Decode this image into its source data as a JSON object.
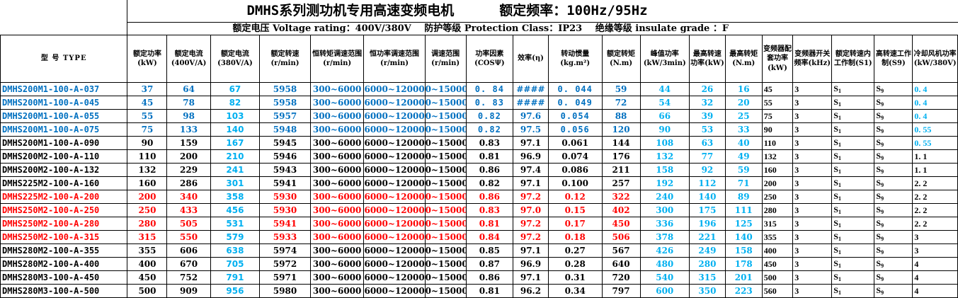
{
  "title": {
    "main": "DMHS系列测功机专用高速变频电机",
    "freq_label": "额定频率：100Hz/95Hz"
  },
  "subtitle": {
    "voltage": "额定电压 Voltage rating：400V/380V",
    "protection": "防护等级 Protection Class：IP23",
    "insulation": "绝缘等级 insulate grade ：F"
  },
  "headers": [
    "型 号 TYPE",
    "额定功率(kW)",
    "额定电流(400V/A)",
    "额定电流(380V/A)",
    "额定转速(r/min)",
    "恒转矩调速范围(r/min)",
    "恒功率调速范围(r/min)",
    "调速范围(r/min)",
    "功率因素(COSΨ)",
    "效率(η)",
    "转动惯量(kg.m²)",
    "额定转矩(N.m)",
    "峰值功率(kW/3min)",
    "最高转速功率(kW)",
    "最高转矩(N.m)",
    "变频器配套功率(kW)",
    "变频器开关频率(kHz)",
    "额定转速内工作制(S1)",
    "高转速工作制(S9)",
    "冷却风机功率(kW/380V)"
  ],
  "rows": [
    {
      "type": "DMHS200M1-100-A-037",
      "color": "blue",
      "p": "37",
      "i400": "64",
      "i380": "67",
      "n": "5958",
      "ct": "300~6000",
      "cp": "6000~12000",
      "sr": "0~15000",
      "pf": "0. 84",
      "eff": "####",
      "j": "0. 044",
      "t": "59",
      "pk": "44",
      "pmax": "26",
      "tmax": "16",
      "inv": "45",
      "sw": "3",
      "s1": "S1",
      "s9": "S9",
      "fan": "0. 4"
    },
    {
      "type": "DMHS200M1-100-A-045",
      "color": "blue",
      "p": "45",
      "i400": "78",
      "i380": "82",
      "n": "5958",
      "ct": "300~6000",
      "cp": "6000~12000",
      "sr": "0~15000",
      "pf": "0. 83",
      "eff": "####",
      "j": "0. 049",
      "t": "72",
      "pk": "54",
      "pmax": "32",
      "tmax": "20",
      "inv": "55",
      "sw": "3",
      "s1": "S1",
      "s9": "S9",
      "fan": "0. 4"
    },
    {
      "type": "DMHS200M1-100-A-055",
      "color": "blue",
      "p": "55",
      "i400": "98",
      "i380": "103",
      "n": "5957",
      "ct": "300~6000",
      "cp": "6000~12000",
      "sr": "0~15000",
      "pf": "0.82",
      "eff": "97.6",
      "j": "0.054",
      "t": "88",
      "pk": "66",
      "pmax": "39",
      "tmax": "25",
      "inv": "75",
      "sw": "3",
      "s1": "S1",
      "s9": "S9",
      "fan": "0. 4"
    },
    {
      "type": "DMHS200M1-100-A-075",
      "color": "blue",
      "p": "75",
      "i400": "133",
      "i380": "140",
      "n": "5948",
      "ct": "300~6000",
      "cp": "6000~12000",
      "sr": "0~15000",
      "pf": "0.82",
      "eff": "97.5",
      "j": "0.056",
      "t": "120",
      "pk": "90",
      "pmax": "53",
      "tmax": "33",
      "inv": "90",
      "sw": "3",
      "s1": "S1",
      "s9": "S9",
      "fan": "0. 55"
    },
    {
      "type": "DMHS200M1-100-A-090",
      "color": "black",
      "p": "90",
      "i400": "159",
      "i380": "167",
      "n": "5945",
      "ct": "300~6000",
      "cp": "6000~12000",
      "sr": "0~15000",
      "pf": "0.83",
      "eff": "97.1",
      "j": "0.061",
      "t": "144",
      "pk": "108",
      "pmax": "63",
      "tmax": "40",
      "inv": "110",
      "sw": "3",
      "s1": "S1",
      "s9": "S9",
      "fan": "0. 55"
    },
    {
      "type": "DMHS200M2-100-A-110",
      "color": "black",
      "p": "110",
      "i400": "200",
      "i380": "210",
      "n": "5946",
      "ct": "300~6000",
      "cp": "6000~12000",
      "sr": "0~15000",
      "pf": "0.81",
      "eff": "96.9",
      "j": "0.074",
      "t": "176",
      "pk": "132",
      "pmax": "77",
      "tmax": "49",
      "inv": "132",
      "sw": "3",
      "s1": "S1",
      "s9": "S9",
      "fan": "1. 1"
    },
    {
      "type": "DMHS200M2-100-A-132",
      "color": "black",
      "p": "132",
      "i400": "229",
      "i380": "241",
      "n": "5943",
      "ct": "300~6000",
      "cp": "6000~12000",
      "sr": "0~15000",
      "pf": "0.86",
      "eff": "97.4",
      "j": "0.086",
      "t": "211",
      "pk": "158",
      "pmax": "92",
      "tmax": "59",
      "inv": "160",
      "sw": "3",
      "s1": "S1",
      "s9": "S9",
      "fan": "1. 1"
    },
    {
      "type": "DMHS225M2-100-A-160",
      "color": "black",
      "p": "160",
      "i400": "286",
      "i380": "301",
      "n": "5941",
      "ct": "300~6000",
      "cp": "6000~12000",
      "sr": "0~15000",
      "pf": "0.82",
      "eff": "97.1",
      "j": "0.100",
      "t": "257",
      "pk": "192",
      "pmax": "112",
      "tmax": "71",
      "inv": "200",
      "sw": "3",
      "s1": "S1",
      "s9": "S9",
      "fan": "2. 2"
    },
    {
      "type": "DMHS225M2-100-A-200",
      "color": "red",
      "p": "200",
      "i400": "340",
      "i380": "358",
      "n": "5930",
      "ct": "300~6000",
      "cp": "6000~12000",
      "sr": "0~15000",
      "pf": "0.86",
      "eff": "97.2",
      "j": "0.12",
      "t": "322",
      "pk": "240",
      "pmax": "140",
      "tmax": "89",
      "inv": "250",
      "sw": "3",
      "s1": "S1",
      "s9": "S9",
      "fan": "2. 2"
    },
    {
      "type": "DMHS250M2-100-A-250",
      "color": "red",
      "p": "250",
      "i400": "433",
      "i380": "456",
      "n": "5930",
      "ct": "300~6000",
      "cp": "6000~12000",
      "sr": "0~15000",
      "pf": "0.83",
      "eff": "97.0",
      "j": "0.15",
      "t": "402",
      "pk": "300",
      "pmax": "175",
      "tmax": "111",
      "inv": "280",
      "sw": "3",
      "s1": "S1",
      "s9": "S9",
      "fan": "2. 2"
    },
    {
      "type": "DMHS250M2-100-A-280",
      "color": "red",
      "p": "280",
      "i400": "505",
      "i380": "531",
      "n": "5941",
      "ct": "300~6000",
      "cp": "6000~12000",
      "sr": "0~15000",
      "pf": "0.81",
      "eff": "97.2",
      "j": "0.17",
      "t": "450",
      "pk": "336",
      "pmax": "196",
      "tmax": "125",
      "inv": "315",
      "sw": "3",
      "s1": "S1",
      "s9": "S9",
      "fan": "2. 2"
    },
    {
      "type": "DMHS250M2-100-A-315",
      "color": "red",
      "p": "315",
      "i400": "550",
      "i380": "579",
      "n": "5933",
      "ct": "300~6000",
      "cp": "6000~12000",
      "sr": "0~15000",
      "pf": "0.84",
      "eff": "97.2",
      "j": "0.18",
      "t": "506",
      "pk": "378",
      "pmax": "221",
      "tmax": "140",
      "inv": "355",
      "sw": "3",
      "s1": "S1",
      "s9": "S9",
      "fan": "3"
    },
    {
      "type": "DMHS280M2-100-A-355",
      "color": "black",
      "p": "355",
      "i400": "606",
      "i380": "638",
      "n": "5974",
      "ct": "300~6000",
      "cp": "6000~12000",
      "sr": "0~15000",
      "pf": "0.85",
      "eff": "97.1",
      "j": "0.27",
      "t": "567",
      "pk": "426",
      "pmax": "249",
      "tmax": "158",
      "inv": "400",
      "sw": "3",
      "s1": "S1",
      "s9": "S9",
      "fan": "3"
    },
    {
      "type": "DMHS280M2-100-A-400",
      "color": "black",
      "p": "400",
      "i400": "670",
      "i380": "705",
      "n": "5972",
      "ct": "300~6000",
      "cp": "6000~12000",
      "sr": "0~15000",
      "pf": "0.87",
      "eff": "96.9",
      "j": "0.28",
      "t": "640",
      "pk": "480",
      "pmax": "280",
      "tmax": "178",
      "inv": "450",
      "sw": "3",
      "s1": "S1",
      "s9": "S9",
      "fan": "4"
    },
    {
      "type": "DMHS280M3-100-A-450",
      "color": "black",
      "p": "450",
      "i400": "752",
      "i380": "791",
      "n": "5971",
      "ct": "300~6000",
      "cp": "6000~12000",
      "sr": "0~15000",
      "pf": "0.86",
      "eff": "97.1",
      "j": "0.31",
      "t": "720",
      "pk": "540",
      "pmax": "315",
      "tmax": "201",
      "inv": "500",
      "sw": "3",
      "s1": "S1",
      "s9": "S9",
      "fan": "4"
    },
    {
      "type": "DMHS280M3-100-A-500",
      "color": "black",
      "p": "500",
      "i400": "909",
      "i380": "956",
      "n": "5980",
      "ct": "300~6000",
      "cp": "6000~12000",
      "sr": "0~15000",
      "pf": "0.81",
      "eff": "96.2",
      "j": "0.34",
      "t": "797",
      "pk": "600",
      "pmax": "350",
      "tmax": "223",
      "inv": "560",
      "sw": "3",
      "s1": "S1",
      "s9": "S9",
      "fan": "4"
    }
  ],
  "colors": {
    "blue": "#0070c0",
    "cyan": "#00b0f0",
    "red": "#ff0000",
    "black": "#000000",
    "border": "#000000"
  }
}
